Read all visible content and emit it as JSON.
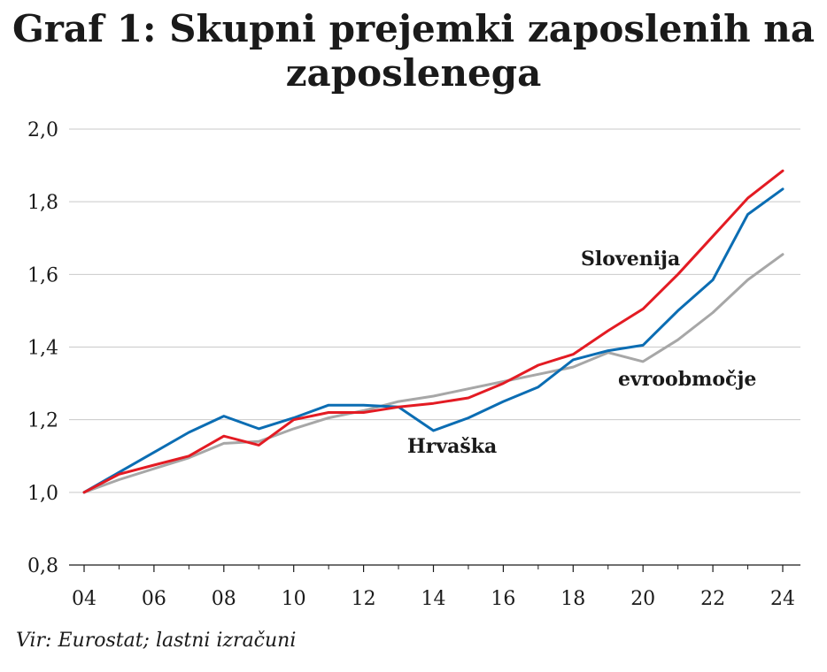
{
  "title": "Graf 1: Skupni prejemki zaposlenih na zaposlenega",
  "source": "Vir: Eurostat; lastni izračuni",
  "chart_data": {
    "type": "line",
    "title": "Graf 1: Skupni prejemki zaposlenih na zaposlenega",
    "xlabel": "",
    "ylabel": "",
    "x": [
      2004,
      2005,
      2006,
      2007,
      2008,
      2009,
      2010,
      2011,
      2012,
      2013,
      2014,
      2015,
      2016,
      2017,
      2018,
      2019,
      2020,
      2021,
      2022,
      2023,
      2024
    ],
    "xlim": [
      2004,
      2024
    ],
    "ylim": [
      0.8,
      2.0
    ],
    "x_ticks": [
      "04",
      "06",
      "08",
      "10",
      "12",
      "14",
      "16",
      "18",
      "20",
      "22",
      "24"
    ],
    "x_tick_values": [
      2004,
      2006,
      2008,
      2010,
      2012,
      2014,
      2016,
      2018,
      2020,
      2022,
      2024
    ],
    "y_ticks": [
      "0,8",
      "1,0",
      "1,2",
      "1,4",
      "1,6",
      "1,8",
      "2,0"
    ],
    "y_tick_values": [
      0.8,
      1.0,
      1.2,
      1.4,
      1.6,
      1.8,
      2.0
    ],
    "grid": true,
    "series": [
      {
        "name": "Slovenija",
        "color": "#e31b23",
        "values": [
          1.0,
          1.05,
          1.075,
          1.1,
          1.155,
          1.13,
          1.2,
          1.22,
          1.22,
          1.235,
          1.245,
          1.26,
          1.3,
          1.35,
          1.38,
          1.445,
          1.505,
          1.6,
          1.705,
          1.81,
          1.885
        ]
      },
      {
        "name": "Hrvaška",
        "color": "#0b6db3",
        "values": [
          1.0,
          1.055,
          1.11,
          1.165,
          1.21,
          1.175,
          1.205,
          1.24,
          1.24,
          1.235,
          1.17,
          1.205,
          1.25,
          1.29,
          1.365,
          1.39,
          1.405,
          1.5,
          1.585,
          1.765,
          1.835
        ]
      },
      {
        "name": "evroobmočje",
        "color": "#a7a7a7",
        "values": [
          1.0,
          1.035,
          1.065,
          1.095,
          1.135,
          1.14,
          1.175,
          1.205,
          1.225,
          1.25,
          1.265,
          1.285,
          1.305,
          1.325,
          1.345,
          1.385,
          1.36,
          1.42,
          1.495,
          1.585,
          1.655
        ]
      }
    ],
    "annotations": [
      {
        "text": "Slovenija",
        "series": "Slovenija"
      },
      {
        "text": "Hrvaška",
        "series": "Hrvaška"
      },
      {
        "text": "evroobmočje",
        "series": "evroobmočje"
      }
    ]
  }
}
